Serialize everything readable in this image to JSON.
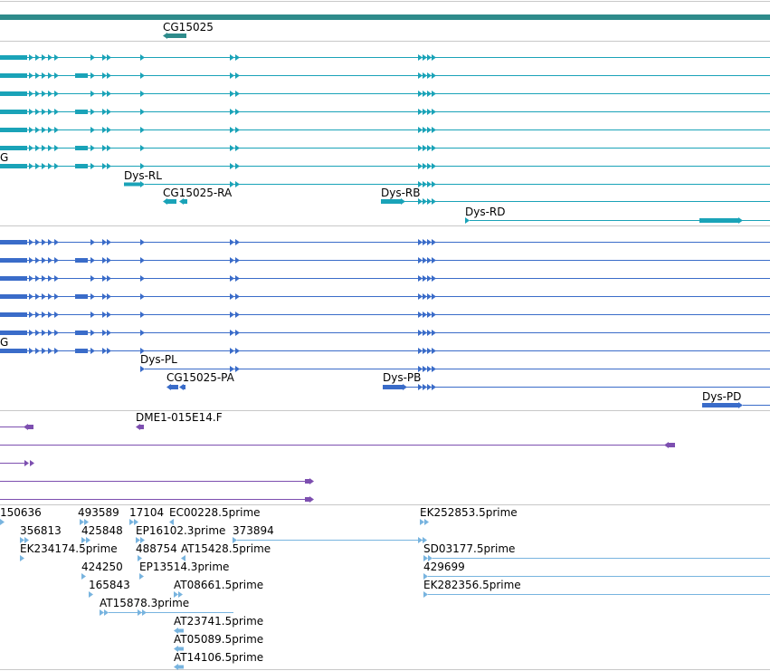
{
  "colors": {
    "divider": "#c8c8c8",
    "gene": "#2e8b8b",
    "transcript_a": "#1aa3b8",
    "transcript_b": "#3a6cc9",
    "cdna": "#7d4fb0",
    "est": "#78b4df"
  },
  "gene_track": {
    "label": "CG15025"
  },
  "track_a": {
    "edge_label": "G",
    "labels": {
      "rl": "Dys-RL",
      "ra": "CG15025-RA",
      "rb": "Dys-RB",
      "rd": "Dys-RD"
    }
  },
  "track_b": {
    "edge_label": "G",
    "labels": {
      "pl": "Dys-PL",
      "pa": "CG15025-PA",
      "pb": "Dys-PB",
      "pd": "Dys-PD"
    }
  },
  "cdna_track": {
    "label": "DME1-015E14.F"
  },
  "est_track": {
    "labels": [
      "150636",
      "493589",
      "17104",
      "EC00228.5prime",
      "EK252853.5prime",
      "356813",
      "425848",
      "EP16102.3prime",
      "373894",
      "EK234174.5prime",
      "488754",
      "AT15428.5prime",
      "SD03177.5prime",
      "424250",
      "EP13514.3prime",
      "429699",
      "165843",
      "AT08661.5prime",
      "EK282356.5prime",
      "AT15878.3prime",
      "AT23741.5prime",
      "AT05089.5prime",
      "AT14106.5prime"
    ]
  }
}
